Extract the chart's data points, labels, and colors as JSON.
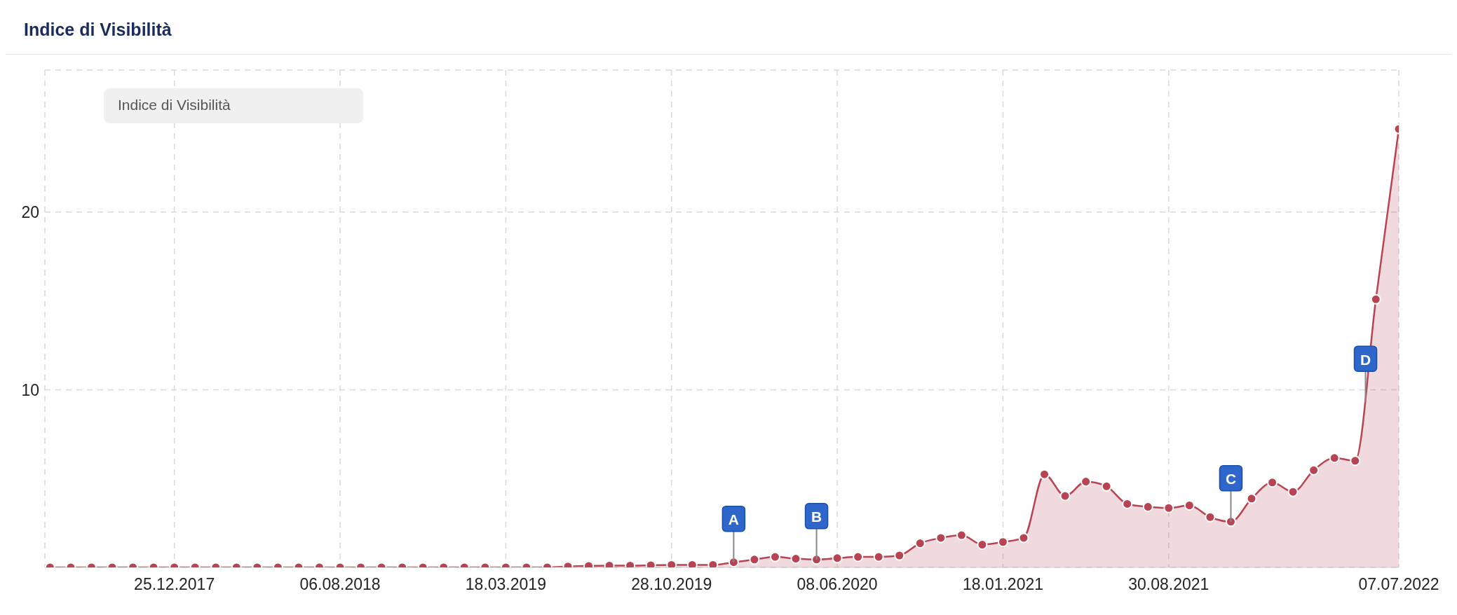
{
  "chart_data": {
    "type": "area",
    "title": "Indice di Visibilità",
    "legend_title": "Indice di Visibilità",
    "grid": true,
    "marker": "circle",
    "x": [
      "2017-07-10",
      "2017-08-07",
      "2017-09-04",
      "2017-10-02",
      "2017-10-30",
      "2017-11-27",
      "2017-12-25",
      "2018-01-22",
      "2018-02-19",
      "2018-03-19",
      "2018-04-16",
      "2018-05-14",
      "2018-06-11",
      "2018-07-09",
      "2018-08-06",
      "2018-09-03",
      "2018-10-01",
      "2018-10-29",
      "2018-11-26",
      "2018-12-24",
      "2019-01-21",
      "2019-02-18",
      "2019-03-18",
      "2019-04-15",
      "2019-05-13",
      "2019-06-10",
      "2019-07-08",
      "2019-08-05",
      "2019-09-02",
      "2019-09-30",
      "2019-10-28",
      "2019-11-25",
      "2019-12-23",
      "2020-01-20",
      "2020-02-17",
      "2020-03-16",
      "2020-04-13",
      "2020-05-11",
      "2020-06-08",
      "2020-07-06",
      "2020-08-03",
      "2020-08-31",
      "2020-09-28",
      "2020-10-26",
      "2020-11-23",
      "2020-12-21",
      "2021-01-18",
      "2021-02-15",
      "2021-03-15",
      "2021-04-12",
      "2021-05-10",
      "2021-06-07",
      "2021-07-05",
      "2021-08-02",
      "2021-08-30",
      "2021-09-27",
      "2021-10-25",
      "2021-11-22",
      "2021-12-20",
      "2022-01-17",
      "2022-02-14",
      "2022-03-14",
      "2022-04-11",
      "2022-05-09",
      "2022-06-06",
      "2022-07-07"
    ],
    "series": [
      {
        "color": "#b84453",
        "values": [
          0,
          0,
          0,
          0,
          0,
          0,
          0,
          0,
          0,
          0,
          0,
          0,
          0,
          0,
          0,
          0,
          0,
          0,
          0,
          0,
          0,
          0,
          0,
          0,
          0,
          0.05,
          0.08,
          0.1,
          0.1,
          0.12,
          0.14,
          0.14,
          0.14,
          0.29,
          0.44,
          0.59,
          0.49,
          0.44,
          0.52,
          0.59,
          0.59,
          0.67,
          1.36,
          1.66,
          1.81,
          1.28,
          1.43,
          1.66,
          5.24,
          4.02,
          4.83,
          4.56,
          3.57,
          3.41,
          3.34,
          3.49,
          2.83,
          2.57,
          3.87,
          4.78,
          4.25,
          5.47,
          6.16,
          6.0,
          15.09,
          24.68
        ]
      }
    ],
    "xlim": [
      "2017-07-03",
      "2022-07-07"
    ],
    "xticks": [
      {
        "value": "2017-12-25",
        "label": "25.12.2017"
      },
      {
        "value": "2018-08-06",
        "label": "06.08.2018"
      },
      {
        "value": "2019-03-18",
        "label": "18.03.2019"
      },
      {
        "value": "2019-10-28",
        "label": "28.10.2019"
      },
      {
        "value": "2020-06-08",
        "label": "08.06.2020"
      },
      {
        "value": "2021-01-18",
        "label": "18.01.2021"
      },
      {
        "value": "2021-08-30",
        "label": "30.08.2021"
      },
      {
        "value": "2022-07-07",
        "label": "07.07.2022"
      }
    ],
    "ylim": [
      0,
      28
    ],
    "yticks": [
      10,
      20
    ],
    "annotations": [
      {
        "text": "A",
        "x": "2020-01-20",
        "y": 0.29
      },
      {
        "text": "B",
        "x": "2020-05-11",
        "y": 0.44
      },
      {
        "text": "C",
        "x": "2021-11-22",
        "y": 2.57
      },
      {
        "text": "D",
        "x": "2022-05-23",
        "y": 9.3
      }
    ]
  }
}
